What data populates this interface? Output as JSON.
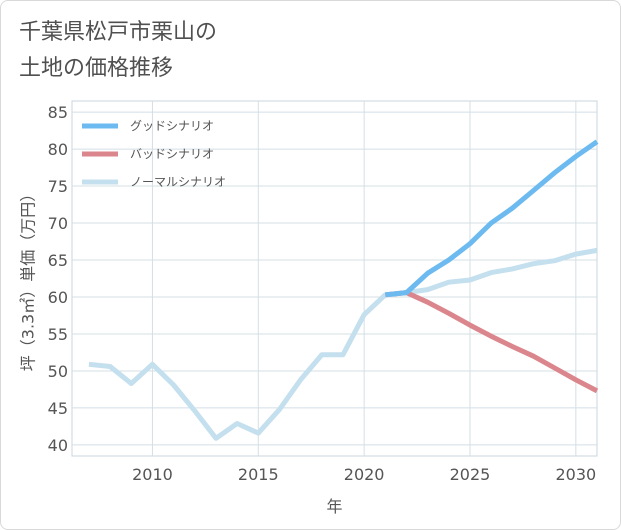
{
  "title_lines": [
    "千葉県松戸市栗山の",
    "土地の価格推移"
  ],
  "chart_data": {
    "type": "line",
    "xlabel": "年",
    "ylabel": "坪（3.3㎡）単価（万円）",
    "xlim": [
      2006.2,
      2031
    ],
    "ylim": [
      38.5,
      86.5
    ],
    "x_ticks": [
      2010,
      2015,
      2020,
      2025,
      2030
    ],
    "y_ticks": [
      40,
      45,
      50,
      55,
      60,
      65,
      70,
      75,
      80,
      85
    ],
    "grid": true,
    "legend_position": "top-left",
    "series": [
      {
        "name": "グッドシナリオ",
        "color": "#6cbaf0",
        "x": [
          2021,
          2022,
          2023,
          2024,
          2025,
          2026,
          2027,
          2028,
          2029,
          2030,
          2031
        ],
        "y": [
          60.3,
          60.6,
          63.2,
          65.0,
          67.2,
          70.0,
          72.0,
          74.4,
          76.8,
          79.0,
          81.0
        ]
      },
      {
        "name": "バッドシナリオ",
        "color": "#db868c",
        "x": [
          2021,
          2022,
          2023,
          2024,
          2025,
          2026,
          2027,
          2028,
          2029,
          2030,
          2031
        ],
        "y": [
          60.3,
          60.6,
          59.3,
          57.8,
          56.2,
          54.7,
          53.3,
          52.0,
          50.4,
          48.8,
          47.3
        ]
      },
      {
        "name": "ノーマルシナリオ",
        "color": "#c4dfee",
        "x": [
          2007,
          2008,
          2009,
          2010,
          2011,
          2012,
          2013,
          2014,
          2015,
          2016,
          2017,
          2018,
          2019,
          2020,
          2021,
          2022,
          2023,
          2024,
          2025,
          2026,
          2027,
          2028,
          2029,
          2030,
          2031
        ],
        "y": [
          50.9,
          50.6,
          48.3,
          50.9,
          48.1,
          44.6,
          40.9,
          42.9,
          41.6,
          44.8,
          48.8,
          52.2,
          52.2,
          57.6,
          60.3,
          60.6,
          61.0,
          62.0,
          62.3,
          63.3,
          63.8,
          64.5,
          64.9,
          65.8,
          66.3
        ]
      }
    ]
  }
}
